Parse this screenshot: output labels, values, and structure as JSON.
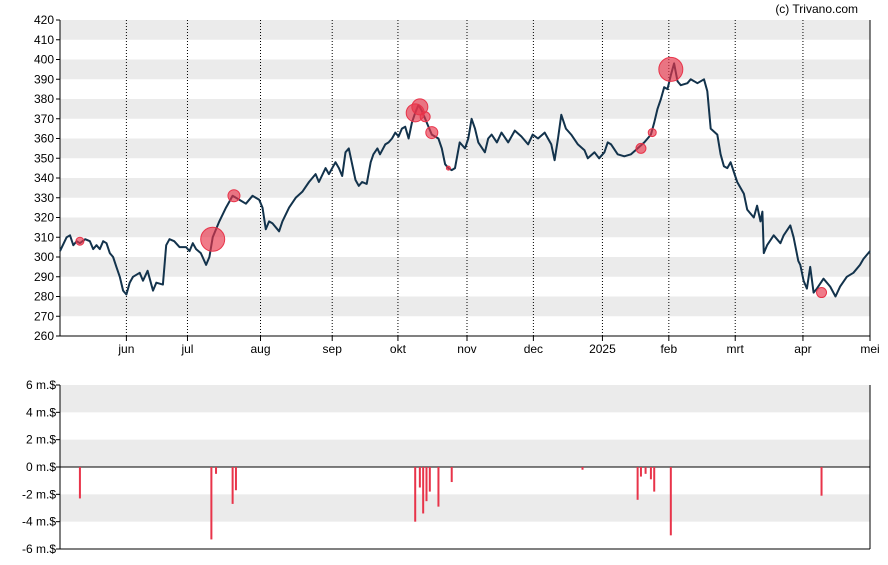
{
  "copyright": "(c) Trivano.com",
  "colors": {
    "band": "#ebebeb",
    "line": "#13334c",
    "marker": "#e8344a",
    "axis": "#000000"
  },
  "chart_data": [
    {
      "type": "line",
      "ylim": [
        260,
        420
      ],
      "y_ticks": [
        260,
        270,
        280,
        290,
        300,
        310,
        320,
        330,
        340,
        350,
        360,
        370,
        380,
        390,
        400,
        410,
        420
      ],
      "x_range": [
        0,
        12.2
      ],
      "x_ticks": [
        {
          "label": "jun",
          "x": 1.0
        },
        {
          "label": "jul",
          "x": 1.92
        },
        {
          "label": "aug",
          "x": 3.02
        },
        {
          "label": "sep",
          "x": 4.1
        },
        {
          "label": "okt",
          "x": 5.09
        },
        {
          "label": "nov",
          "x": 6.13
        },
        {
          "label": "dec",
          "x": 7.13
        },
        {
          "label": "2025",
          "x": 8.17
        },
        {
          "label": "feb",
          "x": 9.17
        },
        {
          "label": "mrt",
          "x": 10.17
        },
        {
          "label": "apr",
          "x": 11.19
        },
        {
          "label": "mei",
          "x": 12.2
        }
      ],
      "grid_x_dotted": true,
      "series": [
        {
          "points": [
            [
              0.0,
              303
            ],
            [
              0.1,
              310
            ],
            [
              0.15,
              311
            ],
            [
              0.2,
              306
            ],
            [
              0.25,
              308
            ],
            [
              0.3,
              307
            ],
            [
              0.38,
              309
            ],
            [
              0.45,
              308
            ],
            [
              0.5,
              304
            ],
            [
              0.55,
              306
            ],
            [
              0.6,
              304
            ],
            [
              0.65,
              308
            ],
            [
              0.7,
              307
            ],
            [
              0.75,
              302
            ],
            [
              0.8,
              300
            ],
            [
              0.85,
              295
            ],
            [
              0.9,
              290
            ],
            [
              0.95,
              283
            ],
            [
              1.0,
              281
            ],
            [
              1.05,
              287
            ],
            [
              1.1,
              290
            ],
            [
              1.2,
              292
            ],
            [
              1.25,
              288
            ],
            [
              1.32,
              293
            ],
            [
              1.4,
              283
            ],
            [
              1.45,
              287
            ],
            [
              1.55,
              286
            ],
            [
              1.6,
              306
            ],
            [
              1.65,
              309
            ],
            [
              1.72,
              308
            ],
            [
              1.8,
              305
            ],
            [
              1.9,
              305
            ],
            [
              1.95,
              303
            ],
            [
              2.0,
              307
            ],
            [
              2.05,
              304
            ],
            [
              2.12,
              302
            ],
            [
              2.2,
              296
            ],
            [
              2.25,
              300
            ],
            [
              2.3,
              310
            ],
            [
              2.4,
              318
            ],
            [
              2.5,
              325
            ],
            [
              2.55,
              328
            ],
            [
              2.6,
              331
            ],
            [
              2.7,
              329
            ],
            [
              2.8,
              327
            ],
            [
              2.9,
              331
            ],
            [
              3.0,
              329
            ],
            [
              3.05,
              325
            ],
            [
              3.1,
              314
            ],
            [
              3.15,
              318
            ],
            [
              3.2,
              317
            ],
            [
              3.3,
              313
            ],
            [
              3.35,
              318
            ],
            [
              3.45,
              325
            ],
            [
              3.55,
              330
            ],
            [
              3.65,
              333
            ],
            [
              3.75,
              338
            ],
            [
              3.85,
              342
            ],
            [
              3.9,
              338
            ],
            [
              4.0,
              345
            ],
            [
              4.05,
              342
            ],
            [
              4.15,
              348
            ],
            [
              4.2,
              345
            ],
            [
              4.25,
              341
            ],
            [
              4.3,
              353
            ],
            [
              4.35,
              355
            ],
            [
              4.45,
              339
            ],
            [
              4.5,
              336
            ],
            [
              4.55,
              338
            ],
            [
              4.62,
              337
            ],
            [
              4.68,
              348
            ],
            [
              4.72,
              352
            ],
            [
              4.78,
              355
            ],
            [
              4.82,
              352
            ],
            [
              4.9,
              357
            ],
            [
              4.95,
              358
            ],
            [
              5.0,
              360
            ],
            [
              5.05,
              363
            ],
            [
              5.1,
              361
            ],
            [
              5.15,
              365
            ],
            [
              5.2,
              366
            ],
            [
              5.25,
              360
            ],
            [
              5.3,
              368
            ],
            [
              5.35,
              373
            ],
            [
              5.4,
              377
            ],
            [
              5.45,
              374
            ],
            [
              5.5,
              370
            ],
            [
              5.55,
              366
            ],
            [
              5.6,
              362
            ],
            [
              5.7,
              360
            ],
            [
              5.75,
              355
            ],
            [
              5.8,
              347
            ],
            [
              5.85,
              345
            ],
            [
              5.9,
              344
            ],
            [
              5.95,
              345
            ],
            [
              6.02,
              358
            ],
            [
              6.1,
              355
            ],
            [
              6.15,
              360
            ],
            [
              6.2,
              370
            ],
            [
              6.25,
              365
            ],
            [
              6.3,
              358
            ],
            [
              6.4,
              353
            ],
            [
              6.45,
              360
            ],
            [
              6.5,
              362
            ],
            [
              6.58,
              358
            ],
            [
              6.65,
              363
            ],
            [
              6.75,
              358
            ],
            [
              6.85,
              364
            ],
            [
              6.95,
              361
            ],
            [
              7.05,
              357
            ],
            [
              7.12,
              362
            ],
            [
              7.2,
              360
            ],
            [
              7.3,
              363
            ],
            [
              7.4,
              357
            ],
            [
              7.45,
              349
            ],
            [
              7.5,
              360
            ],
            [
              7.55,
              372
            ],
            [
              7.62,
              365
            ],
            [
              7.7,
              362
            ],
            [
              7.8,
              357
            ],
            [
              7.9,
              354
            ],
            [
              7.95,
              350
            ],
            [
              8.05,
              353
            ],
            [
              8.12,
              350
            ],
            [
              8.2,
              353
            ],
            [
              8.25,
              358
            ],
            [
              8.3,
              357
            ],
            [
              8.4,
              352
            ],
            [
              8.5,
              351
            ],
            [
              8.6,
              352
            ],
            [
              8.7,
              355
            ],
            [
              8.8,
              358
            ],
            [
              8.9,
              362
            ],
            [
              8.95,
              368
            ],
            [
              9.0,
              375
            ],
            [
              9.05,
              380
            ],
            [
              9.1,
              386
            ],
            [
              9.15,
              385
            ],
            [
              9.2,
              392
            ],
            [
              9.25,
              398
            ],
            [
              9.3,
              389
            ],
            [
              9.35,
              387
            ],
            [
              9.45,
              388
            ],
            [
              9.5,
              390
            ],
            [
              9.55,
              389
            ],
            [
              9.6,
              388
            ],
            [
              9.7,
              390
            ],
            [
              9.75,
              384
            ],
            [
              9.8,
              365
            ],
            [
              9.9,
              362
            ],
            [
              9.95,
              352
            ],
            [
              10.0,
              346
            ],
            [
              10.05,
              345
            ],
            [
              10.1,
              348
            ],
            [
              10.2,
              338
            ],
            [
              10.3,
              332
            ],
            [
              10.35,
              324
            ],
            [
              10.45,
              320
            ],
            [
              10.5,
              326
            ],
            [
              10.55,
              318
            ],
            [
              10.58,
              323
            ],
            [
              10.6,
              302
            ],
            [
              10.65,
              306
            ],
            [
              10.75,
              311
            ],
            [
              10.85,
              307
            ],
            [
              10.9,
              311
            ],
            [
              11.0,
              316
            ],
            [
              11.05,
              310
            ],
            [
              11.12,
              298
            ],
            [
              11.15,
              296
            ],
            [
              11.2,
              288
            ],
            [
              11.25,
              284
            ],
            [
              11.3,
              295
            ],
            [
              11.35,
              282
            ],
            [
              11.4,
              284
            ],
            [
              11.5,
              289
            ],
            [
              11.6,
              285
            ],
            [
              11.68,
              280
            ],
            [
              11.75,
              285
            ],
            [
              11.85,
              290
            ],
            [
              11.95,
              292
            ],
            [
              12.05,
              296
            ],
            [
              12.1,
              299
            ],
            [
              12.2,
              303
            ]
          ]
        }
      ],
      "markers": [
        {
          "x": 0.3,
          "y": 308,
          "size": 4
        },
        {
          "x": 2.3,
          "y": 309,
          "size": 12
        },
        {
          "x": 2.62,
          "y": 331,
          "size": 6
        },
        {
          "x": 5.35,
          "y": 373,
          "size": 9
        },
        {
          "x": 5.42,
          "y": 376,
          "size": 8
        },
        {
          "x": 5.5,
          "y": 371,
          "size": 5
        },
        {
          "x": 5.6,
          "y": 363,
          "size": 6
        },
        {
          "x": 5.85,
          "y": 345,
          "size": 2
        },
        {
          "x": 8.75,
          "y": 355,
          "size": 5
        },
        {
          "x": 8.92,
          "y": 363,
          "size": 4
        },
        {
          "x": 9.2,
          "y": 395,
          "size": 12
        },
        {
          "x": 11.47,
          "y": 282,
          "size": 5
        }
      ]
    },
    {
      "type": "bar",
      "y_ticks": [
        "6 m.$",
        "4 m.$",
        "2 m.$",
        "0 m.$",
        "-2 m.$",
        "-4 m.$",
        "-6 m.$"
      ],
      "ylim": [
        -6,
        6
      ],
      "bars": [
        {
          "x": 0.3,
          "value": -2.3
        },
        {
          "x": 2.28,
          "value": -5.3
        },
        {
          "x": 2.35,
          "value": -0.5
        },
        {
          "x": 2.6,
          "value": -2.7
        },
        {
          "x": 2.65,
          "value": -1.7
        },
        {
          "x": 5.35,
          "value": -4.0
        },
        {
          "x": 5.42,
          "value": -1.5
        },
        {
          "x": 5.47,
          "value": -3.4
        },
        {
          "x": 5.52,
          "value": -2.5
        },
        {
          "x": 5.57,
          "value": -1.8
        },
        {
          "x": 5.7,
          "value": -2.9
        },
        {
          "x": 5.9,
          "value": -1.1
        },
        {
          "x": 7.87,
          "value": -0.2
        },
        {
          "x": 8.7,
          "value": -2.4
        },
        {
          "x": 8.75,
          "value": -0.7
        },
        {
          "x": 8.82,
          "value": -0.5
        },
        {
          "x": 8.9,
          "value": -0.9
        },
        {
          "x": 8.95,
          "value": -1.8
        },
        {
          "x": 9.2,
          "value": -5.0
        },
        {
          "x": 11.47,
          "value": -2.1
        }
      ]
    }
  ]
}
